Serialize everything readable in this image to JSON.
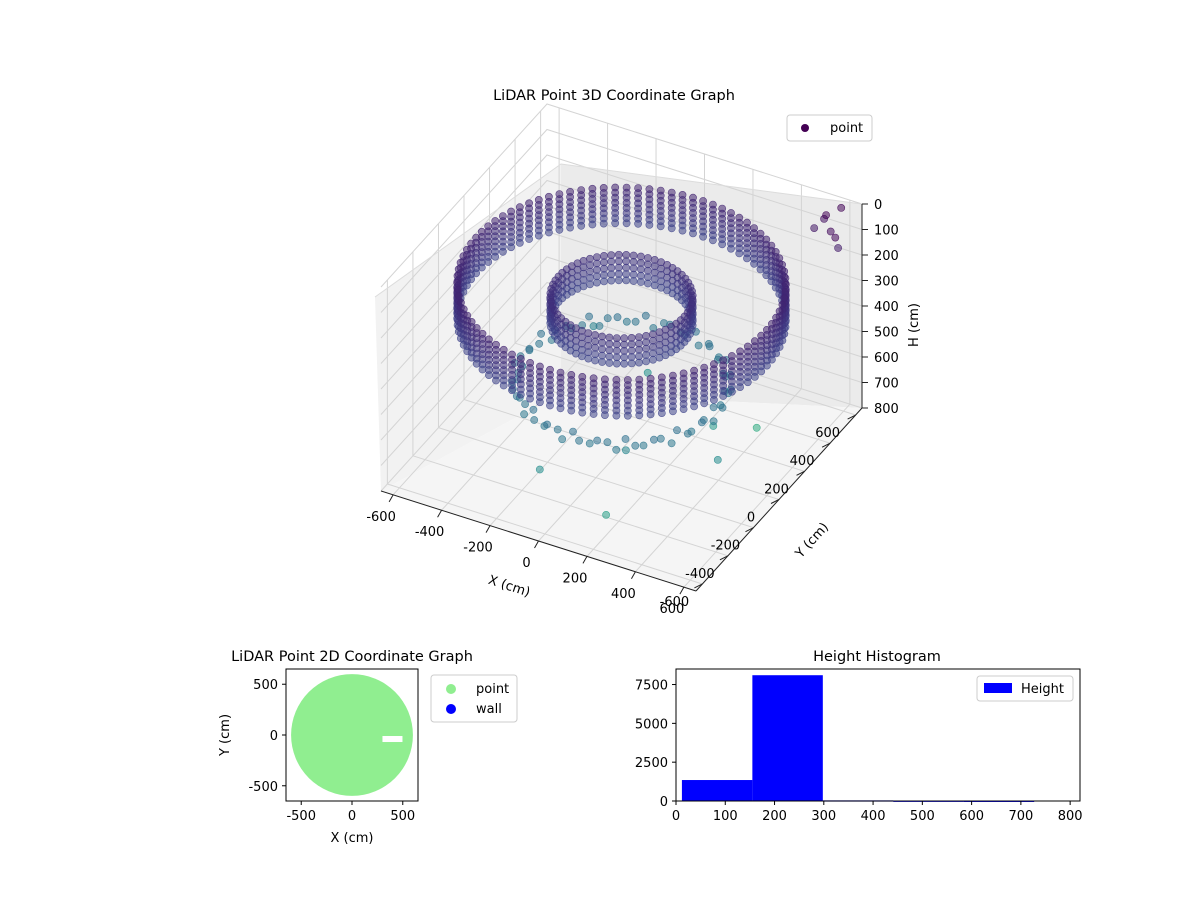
{
  "chart_data": [
    {
      "type": "scatter3d",
      "title": "LiDAR Point 3D Coordinate Graph",
      "xlabel": "X (cm)",
      "ylabel": "Y (cm)",
      "zlabel": "H (cm)",
      "xlim": [
        -650,
        650
      ],
      "ylim": [
        -650,
        650
      ],
      "zlim": [
        800,
        0
      ],
      "x_ticks": [
        "-600",
        "-400",
        "-200",
        "0",
        "200",
        "400",
        "600"
      ],
      "y_ticks": [
        "-600",
        "-400",
        "-200",
        "0",
        "200",
        "400",
        "600"
      ],
      "z_ticks": [
        "0",
        "100",
        "200",
        "300",
        "400",
        "500",
        "600",
        "700",
        "800"
      ],
      "grid": true,
      "legend": {
        "position": "top-right",
        "entries": [
          {
            "name": "point",
            "color": "#440154"
          }
        ]
      },
      "colormap": "viridis",
      "series": [
        {
          "name": "point",
          "description_points": {
            "outer_wall": {
              "radius": 600,
              "h_min": 150,
              "h_max": 300
            },
            "inner_wall": {
              "radius": 260,
              "h_min": 200,
              "h_max": 300
            },
            "floor_ring": {
              "radius": 380,
              "h": 520
            },
            "scatter_low": [
              [
                150,
                -250,
                620
              ],
              [
                -100,
                -450,
                660
              ],
              [
                300,
                150,
                700
              ],
              [
                -300,
                350,
                600
              ],
              [
                450,
                -100,
                650
              ],
              [
                200,
                -500,
                720
              ],
              [
                -50,
                300,
                680
              ],
              [
                400,
                300,
                760
              ]
            ],
            "scatter_high": [
              [
                560,
                540,
                10
              ],
              [
                600,
                500,
                40
              ],
              [
                520,
                600,
                70
              ],
              [
                640,
                460,
                30
              ],
              [
                500,
                560,
                90
              ],
              [
                580,
                620,
                20
              ],
              [
                620,
                520,
                110
              ]
            ]
          }
        }
      ]
    },
    {
      "type": "scatter",
      "title": "LiDAR Point 2D Coordinate Graph",
      "xlabel": "X (cm)",
      "ylabel": "Y (cm)",
      "xlim": [
        -650,
        650
      ],
      "ylim": [
        -650,
        650
      ],
      "x_ticks": [
        "-500",
        "0",
        "500"
      ],
      "y_ticks": [
        "-500",
        "0",
        "500"
      ],
      "legend": {
        "position": "outside-right",
        "entries": [
          {
            "name": "point",
            "color": "#90ee90"
          },
          {
            "name": "wall",
            "color": "#0000ff"
          }
        ]
      },
      "series": [
        {
          "name": "point",
          "color": "#90ee90",
          "shape": "disc",
          "radius": 600
        },
        {
          "name": "wall",
          "color": "#0000ff",
          "values": []
        }
      ]
    },
    {
      "type": "bar",
      "title": "Height Histogram",
      "xlim": [
        0,
        820
      ],
      "ylim": [
        0,
        8500
      ],
      "x_ticks": [
        "0",
        "100",
        "200",
        "300",
        "400",
        "500",
        "600",
        "700",
        "800"
      ],
      "y_ticks": [
        "0",
        "2500",
        "5000",
        "7500"
      ],
      "legend": {
        "position": "top-right",
        "entries": [
          {
            "name": "Height",
            "color": "#0000ff"
          }
        ]
      },
      "series": [
        {
          "name": "Height",
          "color": "#0000ff",
          "bins": [
            {
              "x0": 12,
              "x1": 155,
              "count": 1350
            },
            {
              "x0": 155,
              "x1": 298,
              "count": 8100
            },
            {
              "x0": 298,
              "x1": 441,
              "count": 40
            },
            {
              "x0": 441,
              "x1": 584,
              "count": 20
            },
            {
              "x0": 584,
              "x1": 727,
              "count": 15
            }
          ]
        }
      ]
    }
  ]
}
